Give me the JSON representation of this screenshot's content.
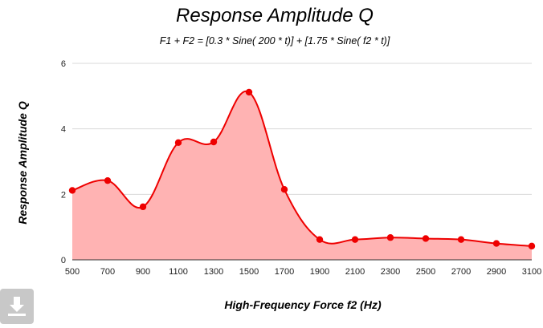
{
  "chart_data": {
    "type": "area",
    "title": "Response Amplitude Q",
    "subtitle": "F1 + F2 = [0.3 * Sine( 200 * t)] + [1.75 * Sine( f2 * t)]",
    "xlabel": "High-Frequency Force f2 (Hz)",
    "ylabel": "Response Amplitude Q",
    "xlim": [
      500,
      3100
    ],
    "ylim": [
      0,
      6
    ],
    "xticks": [
      500,
      700,
      900,
      1100,
      1300,
      1500,
      1700,
      1900,
      2100,
      2300,
      2500,
      2700,
      2900,
      3100
    ],
    "yticks": [
      0,
      2,
      4,
      6
    ],
    "grid": true,
    "x": [
      500,
      700,
      900,
      1100,
      1300,
      1500,
      1700,
      1900,
      2100,
      2300,
      2500,
      2700,
      2900,
      3100
    ],
    "y": [
      2.12,
      2.42,
      1.62,
      3.58,
      3.6,
      5.12,
      2.15,
      0.62,
      0.62,
      0.68,
      0.65,
      0.62,
      0.5,
      0.42
    ],
    "line_color": "#ee0000",
    "fill_color": "#ffb3b3",
    "marker_color": "#ee0000"
  },
  "download_button": {
    "icon": "download-icon"
  }
}
